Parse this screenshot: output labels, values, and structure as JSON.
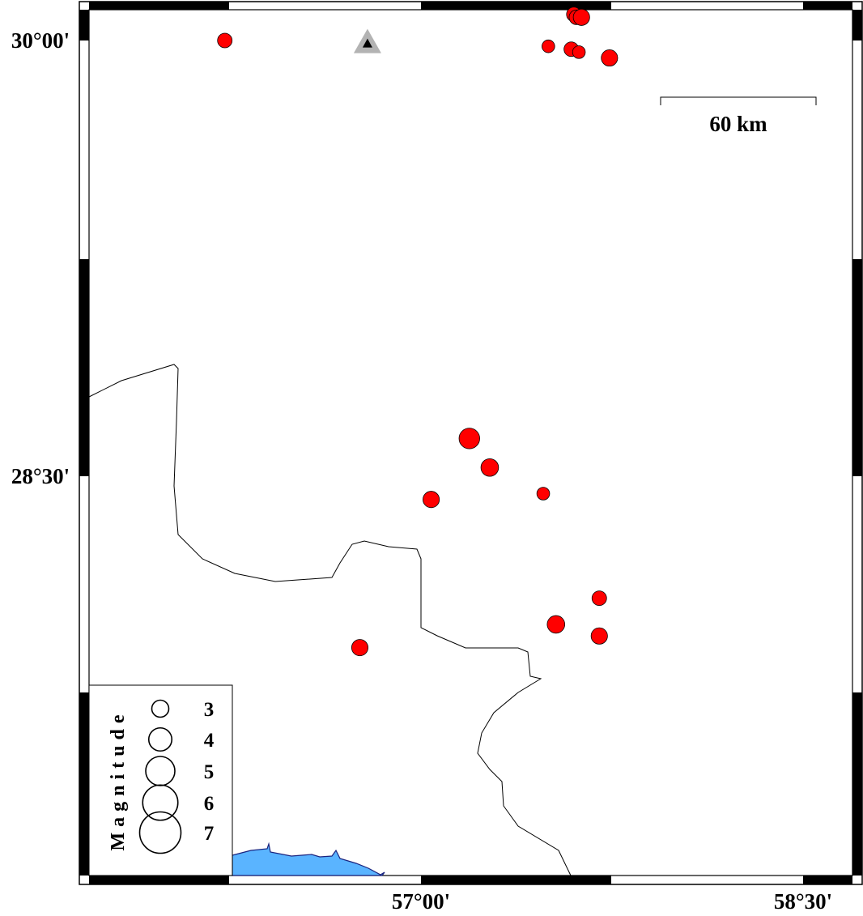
{
  "map": {
    "lon_range": [
      56.5,
      58.5
    ],
    "lat_range": [
      27.0,
      30.01
    ],
    "x_ticks": [
      {
        "lon": 57.0,
        "label": "57°00'"
      },
      {
        "lon": 58.5,
        "label": "58°30'"
      }
    ],
    "y_ticks": [
      {
        "lat": 30.0,
        "label": "30°00'"
      },
      {
        "lat": 28.5,
        "label": "28°30'"
      }
    ],
    "water_color": "#5ab4ff",
    "event_color": "#ff0000",
    "station_color": "#b3b3b3"
  },
  "scale_bar": {
    "label": "60 km"
  },
  "station": {
    "lon": 56.79,
    "lat": 29.99,
    "icon": "triangle-icon"
  },
  "events": [
    {
      "lon": 56.23,
      "lat": 30.0,
      "mag": 2.6
    },
    {
      "lon": 57.6,
      "lat": 30.09,
      "mag": 2.6
    },
    {
      "lon": 57.61,
      "lat": 30.08,
      "mag": 2.6
    },
    {
      "lon": 57.63,
      "lat": 30.08,
      "mag": 2.9
    },
    {
      "lon": 57.5,
      "lat": 29.98,
      "mag": 2.3
    },
    {
      "lon": 57.59,
      "lat": 29.97,
      "mag": 2.6
    },
    {
      "lon": 57.62,
      "lat": 29.96,
      "mag": 2.3
    },
    {
      "lon": 57.74,
      "lat": 29.94,
      "mag": 2.9
    },
    {
      "lon": 57.19,
      "lat": 28.63,
      "mag": 3.6
    },
    {
      "lon": 57.27,
      "lat": 28.53,
      "mag": 3.1
    },
    {
      "lon": 57.04,
      "lat": 28.42,
      "mag": 2.9
    },
    {
      "lon": 57.48,
      "lat": 28.44,
      "mag": 2.3
    },
    {
      "lon": 57.7,
      "lat": 28.08,
      "mag": 2.6
    },
    {
      "lon": 57.53,
      "lat": 27.99,
      "mag": 3.1
    },
    {
      "lon": 57.7,
      "lat": 27.95,
      "mag": 2.9
    },
    {
      "lon": 56.76,
      "lat": 27.91,
      "mag": 2.9
    }
  ],
  "legend": {
    "title": "Magnitude",
    "items": [
      {
        "mag": 3,
        "label": "3"
      },
      {
        "mag": 4,
        "label": "4"
      },
      {
        "mag": 5,
        "label": "5"
      },
      {
        "mag": 6,
        "label": "6"
      },
      {
        "mag": 7,
        "label": "7"
      }
    ]
  }
}
